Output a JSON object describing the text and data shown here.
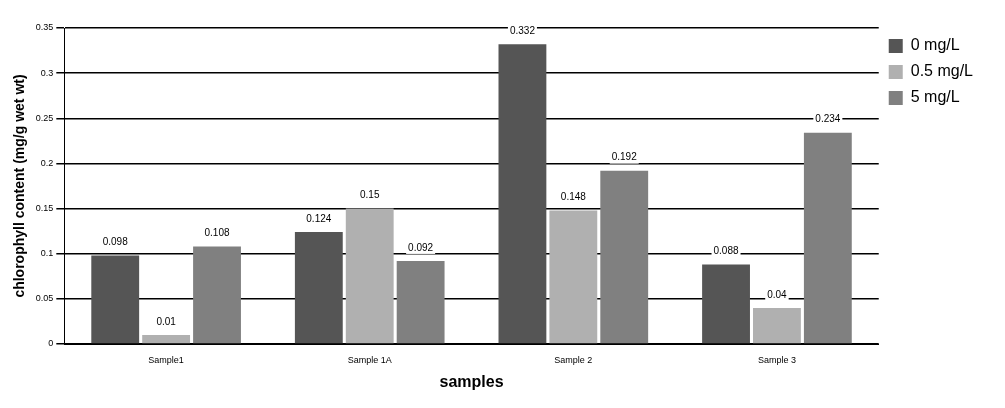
{
  "chart_data": {
    "type": "bar",
    "xlabel": "samples",
    "ylabel": "chlorophyll content (mg/g wet wt)",
    "categories": [
      "Sample1",
      "Sample 1A",
      "Sample 2",
      "Sample 3"
    ],
    "series": [
      {
        "name": "0 mg/L",
        "color": "#555555",
        "values": [
          0.098,
          0.124,
          0.332,
          0.088
        ]
      },
      {
        "name": "0.5 mg/L",
        "color": "#b0b0b0",
        "values": [
          0.01,
          0.15,
          0.148,
          0.04
        ]
      },
      {
        "name": "5 mg/L",
        "color": "#808080",
        "values": [
          0.108,
          0.092,
          0.192,
          0.234
        ]
      }
    ],
    "ylim": [
      0,
      0.35
    ],
    "yticks": [
      0,
      0.05,
      0.1,
      0.15,
      0.2,
      0.25,
      0.3,
      0.35
    ],
    "grid": "y",
    "legend": "top right",
    "data_labels": true
  }
}
